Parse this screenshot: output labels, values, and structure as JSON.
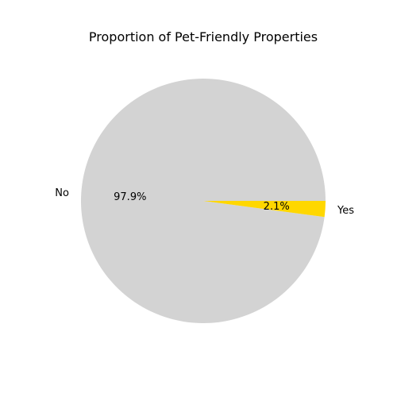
{
  "chart_data": {
    "type": "pie",
    "title": "Proportion of Pet-Friendly Properties",
    "slices": [
      {
        "label": "No",
        "value": 97.9,
        "pct_label": "97.9%",
        "color": "#d3d3d3"
      },
      {
        "label": "Yes",
        "value": 2.1,
        "pct_label": "2.1%",
        "color": "#ffd700"
      }
    ],
    "legend": "none"
  }
}
